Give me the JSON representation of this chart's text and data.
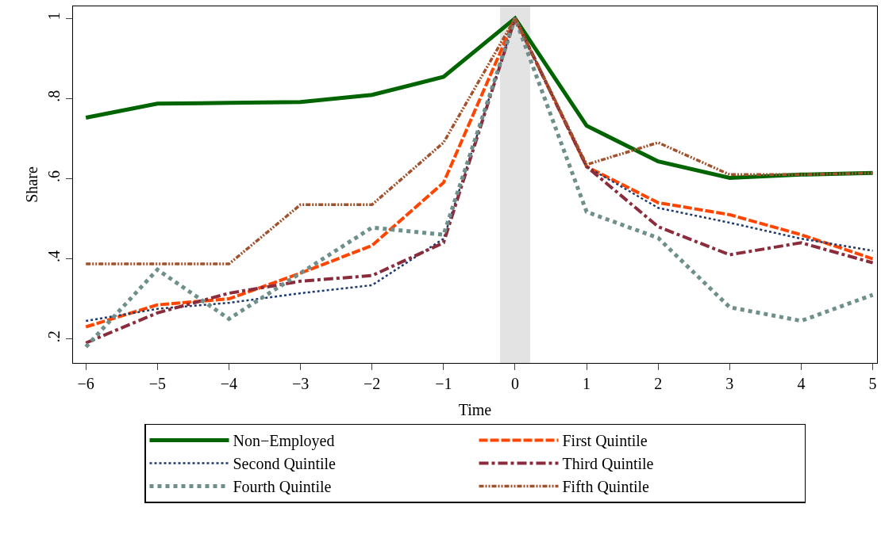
{
  "chart_data": {
    "type": "line",
    "xlabel": "Time",
    "ylabel": "Share",
    "x": [
      -6,
      -5,
      -4,
      -3,
      -2,
      -1,
      0,
      1,
      2,
      3,
      4,
      5
    ],
    "xlim": [
      -6.18,
      5.06
    ],
    "xticks": [
      {
        "value": -6,
        "label": "−6"
      },
      {
        "value": -5,
        "label": "−5"
      },
      {
        "value": -4,
        "label": "−4"
      },
      {
        "value": -3,
        "label": "−3"
      },
      {
        "value": -2,
        "label": "−2"
      },
      {
        "value": -1,
        "label": "−1"
      },
      0,
      1,
      2,
      3,
      4,
      5
    ],
    "ylim": [
      0.14,
      1.03
    ],
    "yticks": [
      {
        "value": 0.2,
        "label": ".2"
      },
      {
        "value": 0.4,
        "label": ".4"
      },
      {
        "value": 0.6,
        "label": ".6"
      },
      {
        "value": 0.8,
        "label": ".8"
      },
      1
    ],
    "grid": false,
    "legend": "bottom",
    "marker": "none",
    "bands": [
      {
        "axis": "x",
        "from": -0.21,
        "to": 0.21,
        "color": "#e3e3e3"
      }
    ],
    "series": [
      {
        "name": "Non−Employed",
        "color": "#006400",
        "line_style": "solid",
        "values": [
          0.752,
          0.787,
          0.789,
          0.791,
          0.809,
          0.854,
          1,
          0.732,
          0.643,
          0.602,
          0.61,
          0.614
        ]
      },
      {
        "name": "First Quintile",
        "color": "#ff4500",
        "line_style": "dashed",
        "values": [
          0.23,
          0.285,
          0.3,
          0.364,
          0.433,
          0.59,
          1,
          0.63,
          0.54,
          0.51,
          0.46,
          0.4
        ]
      },
      {
        "name": "Second Quintile",
        "color": "#1f3a6e",
        "line_style": "dotted",
        "values": [
          0.245,
          0.275,
          0.29,
          0.314,
          0.334,
          0.45,
          1,
          0.63,
          0.527,
          0.49,
          0.45,
          0.42
        ]
      },
      {
        "name": "Third Quintile",
        "color": "#8b2c3c",
        "line_style": "dashdot",
        "values": [
          0.19,
          0.265,
          0.314,
          0.344,
          0.358,
          0.44,
          1,
          0.63,
          0.48,
          0.41,
          0.44,
          0.39
        ]
      },
      {
        "name": "Fourth Quintile",
        "color": "#6f8f8a",
        "line_style": "dotted",
        "values": [
          0.18,
          0.373,
          0.25,
          0.364,
          0.478,
          0.46,
          1,
          0.517,
          0.452,
          0.279,
          0.245,
          0.31
        ]
      },
      {
        "name": "Fifth Quintile",
        "color": "#a0522d",
        "line_style": "dashdotdot",
        "values": [
          0.387,
          0.387,
          0.387,
          0.535,
          0.535,
          0.69,
          1,
          0.635,
          0.69,
          0.61,
          0.61,
          0.614
        ]
      }
    ]
  }
}
